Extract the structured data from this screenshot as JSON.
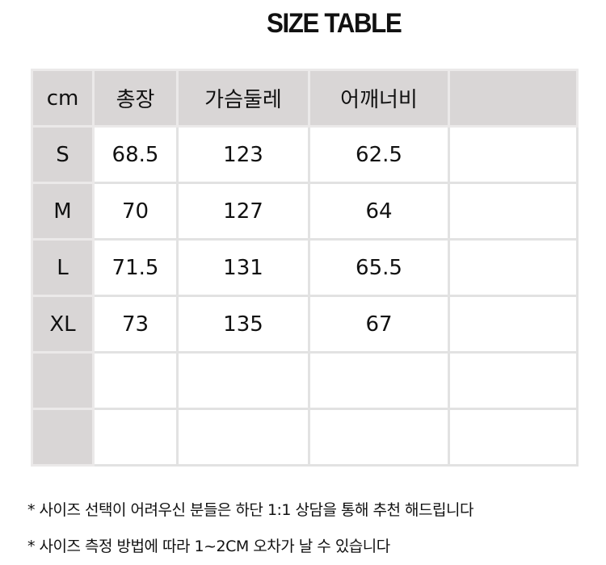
{
  "title": "SIZE TABLE",
  "headers": [
    "cm",
    "총장",
    "가슴둘레",
    "어깨너비",
    ""
  ],
  "rows": [
    [
      "S",
      "68.5",
      "123",
      "62.5",
      ""
    ],
    [
      "M",
      "70",
      "127",
      "64",
      ""
    ],
    [
      "L",
      "71.5",
      "131",
      "65.5",
      ""
    ],
    [
      "XL",
      "73",
      "135",
      "67",
      ""
    ],
    [
      "",
      "",
      "",
      "",
      ""
    ],
    [
      "",
      "",
      "",
      "",
      ""
    ]
  ],
  "notes": [
    "* 사이즈 선택이 어려우신 분들은 하단 1:1 상담을 통해 추천 해드립니다",
    "* 사이즈 측정 방법에 따라 1~2CM 오차가 날 수 있습니다"
  ]
}
